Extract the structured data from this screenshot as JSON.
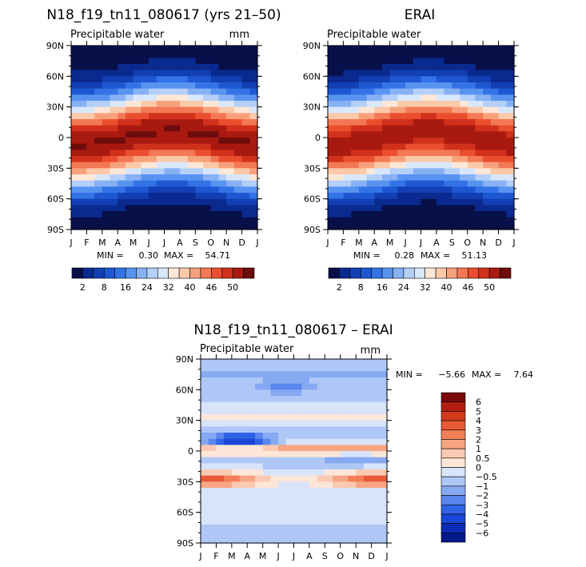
{
  "colors": {
    "ramp": [
      "#08104a",
      "#0b2a8f",
      "#1240b4",
      "#1e57d2",
      "#3373e6",
      "#5893f0",
      "#86b1f4",
      "#b4cff8",
      "#d9e7fb",
      "#fde7d6",
      "#fbc9a8",
      "#f7a17c",
      "#f37855",
      "#ea4e2e",
      "#d1301a",
      "#a81a10",
      "#6e0b0b"
    ],
    "diff": [
      "#001a8a",
      "#0a2cb5",
      "#1846d6",
      "#2f62e6",
      "#5a86ee",
      "#86a9f2",
      "#afc7f6",
      "#d7e4fa",
      "#fde6d8",
      "#fbc9b1",
      "#f8a583",
      "#f27f57",
      "#e95a36",
      "#d33a1a",
      "#b21f10",
      "#7d0a0a"
    ]
  },
  "chart_data": [
    {
      "type": "heatmap",
      "title": "N18_f19_tn11_080617 (yrs 21–50)",
      "subtitle": "Precipitable water",
      "units": "mm",
      "x_ticks": [
        "J",
        "F",
        "M",
        "A",
        "M",
        "J",
        "J",
        "A",
        "S",
        "O",
        "N",
        "D",
        "J"
      ],
      "y_ticks": [
        "90N",
        "60N",
        "30N",
        "0",
        "30S",
        "60S",
        "90S"
      ],
      "min_label": "MIN =",
      "min_value": "0.30",
      "max_label": "MAX =",
      "max_value": "54.71",
      "data_range": [
        0,
        55
      ],
      "field_peak": 52,
      "colorbar_labels": [
        "2",
        "8",
        "16",
        "24",
        "32",
        "40",
        "46",
        "50"
      ],
      "colorbar_levels": [
        2,
        4,
        6,
        8,
        12,
        16,
        20,
        24,
        28,
        32,
        36,
        40,
        44,
        46,
        48,
        50
      ]
    },
    {
      "type": "heatmap",
      "title": "ERAI",
      "subtitle": "Precipitable water",
      "units": "mm",
      "x_ticks": [
        "J",
        "F",
        "M",
        "A",
        "M",
        "J",
        "J",
        "A",
        "S",
        "O",
        "N",
        "D",
        "J"
      ],
      "y_ticks": [
        "90N",
        "60N",
        "30N",
        "0",
        "30S",
        "60S",
        "90S"
      ],
      "min_label": "MIN =",
      "min_value": "0.28",
      "max_label": "MAX =",
      "max_value": "51.13",
      "data_range": [
        0,
        52
      ],
      "field_peak": 48,
      "colorbar_labels": [
        "2",
        "8",
        "16",
        "24",
        "32",
        "40",
        "46",
        "50"
      ],
      "colorbar_levels": [
        2,
        4,
        6,
        8,
        12,
        16,
        20,
        24,
        28,
        32,
        36,
        40,
        44,
        46,
        48,
        50
      ]
    },
    {
      "type": "heatmap",
      "title": "N18_f19_tn11_080617 – ERAI",
      "subtitle": "Precipitable water",
      "units": "mm",
      "x_ticks": [
        "J",
        "F",
        "M",
        "A",
        "M",
        "J",
        "J",
        "A",
        "S",
        "O",
        "N",
        "D",
        "J"
      ],
      "y_ticks": [
        "90N",
        "60N",
        "30N",
        "0",
        "30S",
        "60S",
        "90S"
      ],
      "min_label": "MIN =",
      "min_value": "−5.66",
      "max_label": "MAX =",
      "max_value": "7.64",
      "data_range": [
        -6,
        8
      ],
      "colorbar_labels": [
        "6",
        "5",
        "4",
        "3",
        "2",
        "1",
        "0.5",
        "0",
        "−0.5",
        "−1",
        "−2",
        "−3",
        "−4",
        "−5",
        "−6"
      ],
      "colorbar_levels": [
        -6,
        -5,
        -4,
        -3,
        -2,
        -1,
        -0.5,
        0,
        0.5,
        1,
        2,
        3,
        4,
        5,
        6
      ]
    }
  ]
}
